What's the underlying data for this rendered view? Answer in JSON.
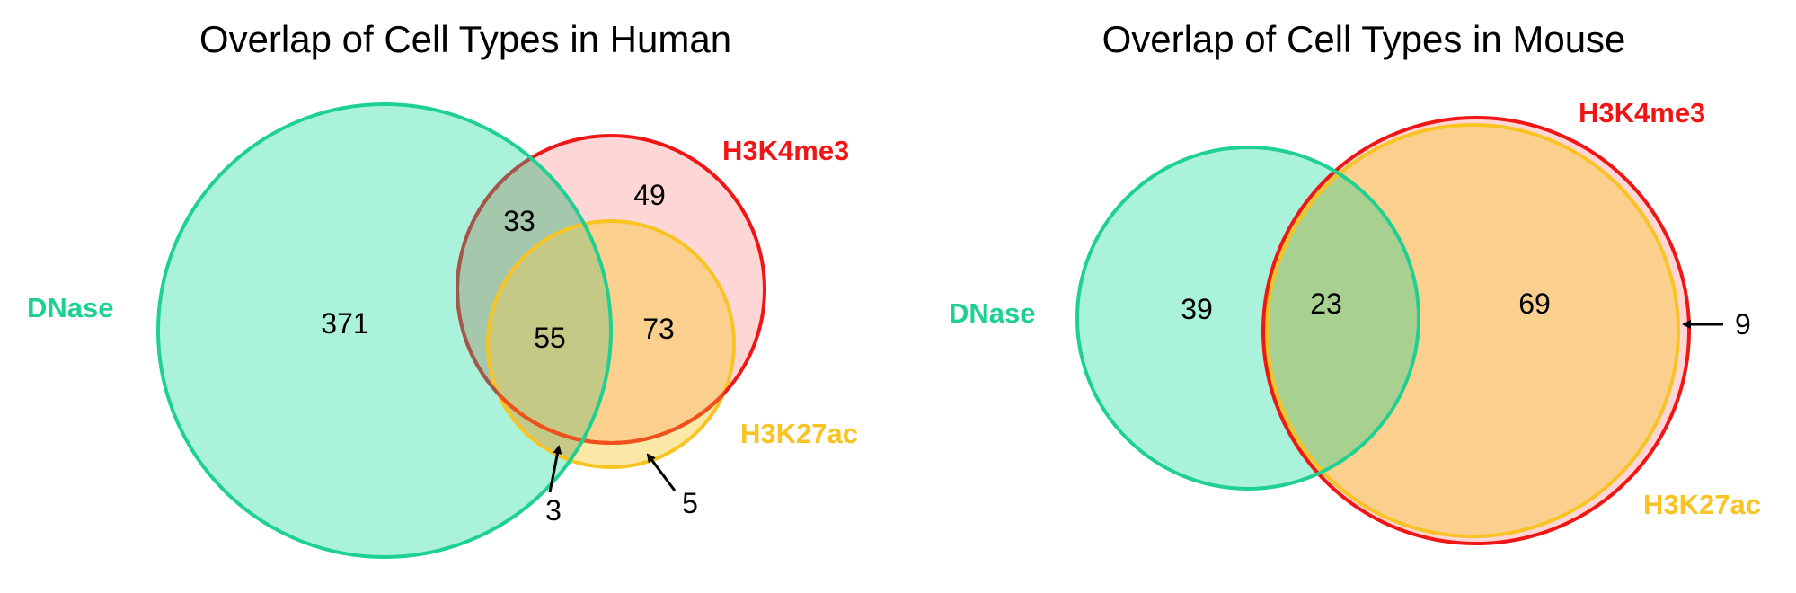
{
  "colors": {
    "dnase": "#1ed192",
    "dnase_fill": "#abf2dc",
    "h3k4me3": "#f01616",
    "h3k4me3_fill": "#ffd6d6",
    "h3k27ac": "#f9c322",
    "h3k27ac_fill": "#fbd08f",
    "h3k27ac_light_fill": "#fbe8a6",
    "human_dnase_h3k4me3_fill": "#a5c7ac",
    "human_all_three_fill": "#c4ca86",
    "mouse_overlap_fill": "#a8d191",
    "human_dnase_h3k4me3_stroke": "#a2574a",
    "human_h3k4me3_h3k27ac_stroke": "#f0501b",
    "text": "#000000"
  },
  "human": {
    "title": "Overlap of Cell Types in Human",
    "sets": {
      "dnase": "DNase",
      "h3k4me3": "H3K4me3",
      "h3k27ac": "H3K27ac"
    },
    "regions": {
      "dnase_only": "371",
      "h3k4me3_only": "49",
      "dnase_h3k4me3": "33",
      "all_three": "55",
      "h3k4me3_h3k27ac": "73",
      "dnase_h3k27ac": "3",
      "h3k27ac_only": "5"
    }
  },
  "mouse": {
    "title": "Overlap of Cell Types in Mouse",
    "sets": {
      "dnase": "DNase",
      "h3k4me3": "H3K4me3",
      "h3k27ac": "H3K27ac"
    },
    "regions": {
      "dnase_only": "39",
      "overlap": "23",
      "h3k4me3_h3k27ac": "69",
      "h3k4me3_only": "9"
    }
  }
}
